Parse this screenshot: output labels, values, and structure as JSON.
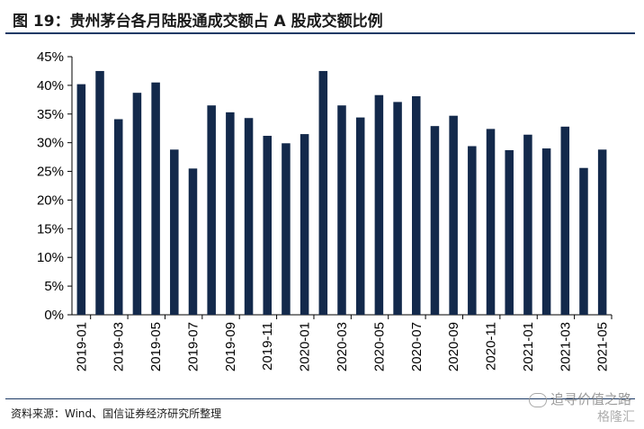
{
  "header": {
    "title": "图 19：贵州茅台各月陆股通成交额占 A 股成交额比例"
  },
  "footer": {
    "source": "资料来源：Wind、国信证券经济研究所整理"
  },
  "watermark": {
    "line1": "追寻价值之路",
    "line2": "格隆汇"
  },
  "colors": {
    "bar": "#13294b",
    "axis": "#000000"
  },
  "chart_data": {
    "type": "bar",
    "title": "",
    "xlabel": "",
    "ylabel": "",
    "ylim": [
      0,
      45
    ],
    "yticks": [
      "0%",
      "5%",
      "10%",
      "15%",
      "20%",
      "25%",
      "30%",
      "35%",
      "40%",
      "45%"
    ],
    "grid": false,
    "categories": [
      "2019-01",
      "2019-02",
      "2019-03",
      "2019-04",
      "2019-05",
      "2019-06",
      "2019-07",
      "2019-08",
      "2019-09",
      "2019-10",
      "2019-11",
      "2019-12",
      "2020-01",
      "2020-02",
      "2020-03",
      "2020-04",
      "2020-05",
      "2020-06",
      "2020-07",
      "2020-08",
      "2020-09",
      "2020-10",
      "2020-11",
      "2020-12",
      "2021-01",
      "2021-02",
      "2021-03",
      "2021-04",
      "2021-05"
    ],
    "xtick_labels": [
      "2019-01",
      "2019-03",
      "2019-05",
      "2019-07",
      "2019-09",
      "2019-11",
      "2020-01",
      "2020-03",
      "2020-05",
      "2020-07",
      "2020-09",
      "2020-11",
      "2021-01",
      "2021-03",
      "2021-05"
    ],
    "values": [
      40.2,
      42.5,
      34.1,
      38.7,
      40.5,
      28.8,
      25.5,
      36.5,
      35.3,
      34.3,
      31.2,
      29.9,
      31.5,
      42.5,
      36.5,
      34.4,
      38.3,
      37.1,
      38.1,
      32.9,
      34.7,
      29.4,
      32.4,
      28.7,
      31.4,
      29.0,
      32.8,
      25.6,
      28.8
    ]
  }
}
